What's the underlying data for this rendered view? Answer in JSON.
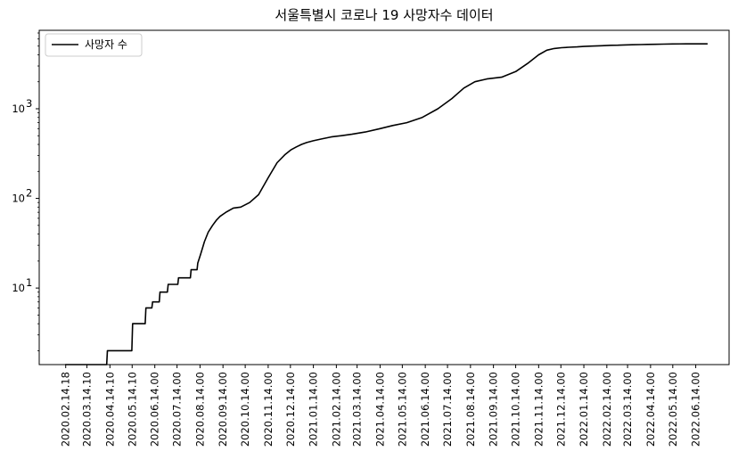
{
  "chart_data": {
    "type": "line",
    "title": "서울특별시 코로나 19 사망자수 데이터",
    "xlabel": "",
    "ylabel": "",
    "yscale": "log",
    "ylim": [
      1.4,
      7500
    ],
    "grid": false,
    "legend_position": "top-left",
    "y_ticks": [
      {
        "value": 10,
        "base": "10",
        "exp": "1"
      },
      {
        "value": 100,
        "base": "10",
        "exp": "2"
      },
      {
        "value": 1000,
        "base": "10",
        "exp": "3"
      }
    ],
    "x_ticks": [
      "2020.02.14.18",
      "2020.03.14.10",
      "2020.04.14.10",
      "2020.05.14.10",
      "2020.06.14.00",
      "2020.07.14.00",
      "2020.08.14.00",
      "2020.09.14.00",
      "2020.10.14.00",
      "2020.11.14.00",
      "2020.12.14.00",
      "2021.01.14.00",
      "2021.02.14.00",
      "2021.03.14.00",
      "2021.04.14.00",
      "2021.05.14.00",
      "2021.06.14.00",
      "2021.07.14.00",
      "2021.08.14.00",
      "2021.09.14.00",
      "2021.10.14.00",
      "2021.11.14.00",
      "2021.12.14.00",
      "2022.01.14.00",
      "2022.02.14.00",
      "2022.03.14.00",
      "2022.04.14.00",
      "2022.05.14.00",
      "2022.06.14.00"
    ],
    "series": [
      {
        "name": "사망자 수",
        "color": "#000000",
        "x": [
          "2020-02-14",
          "2020-04-10",
          "2020-04-11",
          "2020-05-14",
          "2020-05-15",
          "2020-06-01",
          "2020-06-02",
          "2020-06-10",
          "2020-06-11",
          "2020-06-20",
          "2020-06-21",
          "2020-07-01",
          "2020-07-02",
          "2020-07-15",
          "2020-07-16",
          "2020-08-01",
          "2020-08-02",
          "2020-08-10",
          "2020-08-11",
          "2020-08-15",
          "2020-08-20",
          "2020-08-25",
          "2020-08-31",
          "2020-09-05",
          "2020-09-10",
          "2020-09-18",
          "2020-09-28",
          "2020-10-08",
          "2020-10-20",
          "2020-11-01",
          "2020-11-14",
          "2020-11-26",
          "2020-12-07",
          "2020-12-15",
          "2020-12-22",
          "2020-12-29",
          "2021-01-05",
          "2021-01-14",
          "2021-01-25",
          "2021-02-07",
          "2021-02-20",
          "2021-03-07",
          "2021-03-25",
          "2021-04-14",
          "2021-05-01",
          "2021-05-20",
          "2021-06-10",
          "2021-07-01",
          "2021-07-20",
          "2021-08-05",
          "2021-08-20",
          "2021-09-05",
          "2021-09-25",
          "2021-10-14",
          "2021-10-30",
          "2021-11-14",
          "2021-11-25",
          "2021-12-05",
          "2021-12-15",
          "2021-12-25",
          "2022-01-05",
          "2022-01-14",
          "2022-01-25",
          "2022-02-07",
          "2022-02-20",
          "2022-03-01",
          "2022-03-10",
          "2022-03-20",
          "2022-04-01",
          "2022-04-10",
          "2022-04-20",
          "2022-05-01",
          "2022-05-14",
          "2022-06-01",
          "2022-06-14",
          "2022-06-30"
        ],
        "values": [
          1.4,
          1.4,
          2,
          2,
          4,
          4,
          6,
          6,
          7,
          7,
          9,
          9,
          11,
          11,
          13,
          13,
          16,
          16,
          19,
          24,
          33,
          42,
          50,
          57,
          63,
          70,
          78,
          80,
          90,
          110,
          170,
          250,
          310,
          350,
          375,
          400,
          420,
          440,
          460,
          485,
          500,
          520,
          550,
          600,
          650,
          700,
          800,
          1000,
          1300,
          1700,
          2000,
          2150,
          2250,
          2600,
          3200,
          4000,
          4500,
          4700,
          4800,
          4850,
          4900,
          4950,
          5000,
          5050,
          5100,
          5120,
          5150,
          5180,
          5200,
          5220,
          5240,
          5260,
          5280,
          5300,
          5300,
          5300
        ]
      }
    ]
  }
}
